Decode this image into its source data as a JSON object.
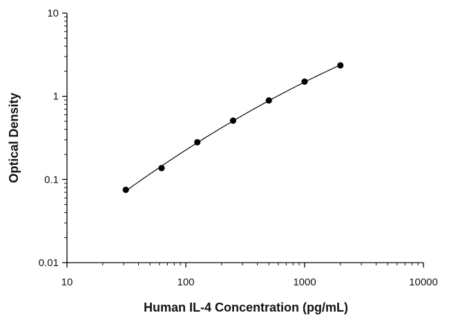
{
  "chart_data": {
    "type": "scatter",
    "title": "",
    "xlabel": "Human IL-4 Concentration (pg/mL)",
    "ylabel": "Optical Density",
    "xscale": "log",
    "yscale": "log",
    "xlim": [
      10,
      10000
    ],
    "ylim": [
      0.01,
      10
    ],
    "x_tick_labels": [
      "10",
      "100",
      "1000",
      "10000"
    ],
    "y_tick_labels": [
      "0.01",
      "0.1",
      "1",
      "10"
    ],
    "grid": false,
    "legend": "none",
    "fit_line": true,
    "series": [
      {
        "x": [
          31.25,
          62.5,
          125,
          250,
          500,
          1000,
          2000
        ],
        "y": [
          0.075,
          0.137,
          0.28,
          0.51,
          0.89,
          1.5,
          2.35
        ]
      }
    ],
    "colors": {
      "marker": "#000000",
      "line": "#000000",
      "axis": "#000000"
    }
  }
}
